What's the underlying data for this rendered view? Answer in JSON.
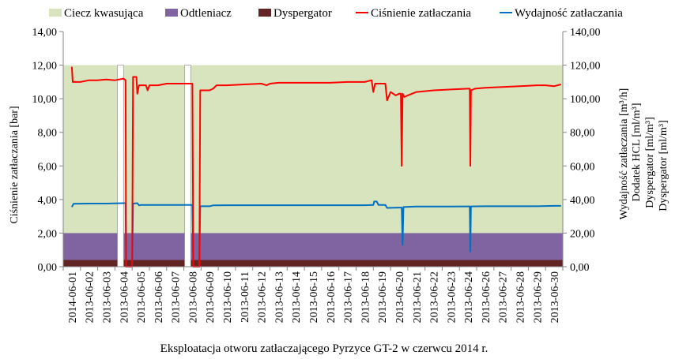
{
  "chart_data": {
    "type": "area+line",
    "title": "",
    "xlabel": "Eksploatacja otworu zatłaczającego Pyrzyce GT-2 w czerwcu 2014 r.",
    "ylabel_left": "Ciśnienie zatłaczania [bar]",
    "ylabel_right": [
      "Wydajność zatłaczania [m³/h]",
      "Dodatek HCL [ml/m³]",
      "Dyspergator [ml/m³]",
      "Dyspergator [ml/m³]"
    ],
    "ylim_left": [
      0,
      14
    ],
    "ylim_right": [
      0,
      140
    ],
    "left_ticks": [
      "0,00",
      "2,00",
      "4,00",
      "6,00",
      "8,00",
      "10,00",
      "12,00",
      "14,00"
    ],
    "right_ticks": [
      "0,00",
      "20,00",
      "40,00",
      "60,00",
      "80,00",
      "100,00",
      "120,00",
      "140,00"
    ],
    "categories": [
      "2014-06-01",
      "2013-06-02",
      "2013-06-03",
      "2013-06-04",
      "2013-06-05",
      "2013-06-06",
      "2013-06-07",
      "2013-06-08",
      "2013-06-09",
      "2013-06-10",
      "2013-06-11",
      "2013-06-12",
      "2013-06-13",
      "2013-06-14",
      "2013-06-15",
      "2013-06-16",
      "2013-06-17",
      "2013-06-18",
      "2013-06-19",
      "2013-06-20",
      "2013-06-21",
      "2013-06-22",
      "2013-06-23",
      "2013-06-24",
      "2013-06-26",
      "2013-06-27",
      "2013-06-28",
      "2013-06-29",
      "2013-06-30"
    ],
    "legend": [
      {
        "name": "Ciecz kwasująca",
        "kind": "area",
        "color": "#d7e4bd"
      },
      {
        "name": "Odtleniacz",
        "kind": "area",
        "color": "#8064a2"
      },
      {
        "name": "Dyspergator",
        "kind": "area",
        "color": "#632523"
      },
      {
        "name": "Ciśnienie zatłaczania",
        "kind": "line",
        "color": "#ff0000"
      },
      {
        "name": "Wydajność zatłaczania",
        "kind": "line",
        "color": "#0070c0"
      }
    ],
    "area_levels_left_axis": {
      "Ciecz kwasująca": 12.0,
      "Odtleniacz": 2.0,
      "Dyspergator": 0.4
    },
    "area_gaps_day": [
      [
        4.15,
        4.5
      ],
      [
        8.05,
        8.4
      ]
    ],
    "pressure_series": {
      "name": "Ciśnienie zatłaczania",
      "axis": "left",
      "points": [
        [
          1.0,
          11.9
        ],
        [
          1.05,
          11.0
        ],
        [
          1.5,
          11.0
        ],
        [
          2.0,
          11.1
        ],
        [
          2.5,
          11.1
        ],
        [
          3.0,
          11.15
        ],
        [
          3.5,
          11.1
        ],
        [
          4.0,
          11.2
        ],
        [
          4.12,
          11.1
        ],
        [
          4.15,
          0
        ],
        [
          4.5,
          0
        ],
        [
          4.55,
          11.3
        ],
        [
          4.75,
          11.3
        ],
        [
          4.8,
          10.3
        ],
        [
          4.9,
          10.8
        ],
        [
          5.3,
          10.8
        ],
        [
          5.4,
          10.5
        ],
        [
          5.5,
          10.8
        ],
        [
          6.0,
          10.8
        ],
        [
          6.5,
          10.9
        ],
        [
          7.0,
          10.9
        ],
        [
          7.5,
          10.9
        ],
        [
          8.0,
          10.9
        ],
        [
          8.05,
          0
        ],
        [
          8.4,
          0
        ],
        [
          8.45,
          10.5
        ],
        [
          9.0,
          10.5
        ],
        [
          9.2,
          10.6
        ],
        [
          9.4,
          10.8
        ],
        [
          10.0,
          10.8
        ],
        [
          11.0,
          10.85
        ],
        [
          12.0,
          10.9
        ],
        [
          12.3,
          10.8
        ],
        [
          12.5,
          10.9
        ],
        [
          13.0,
          10.95
        ],
        [
          14.0,
          10.95
        ],
        [
          15.0,
          10.95
        ],
        [
          16.0,
          10.95
        ],
        [
          17.0,
          11.0
        ],
        [
          18.0,
          11.0
        ],
        [
          18.4,
          11.1
        ],
        [
          18.5,
          10.4
        ],
        [
          18.6,
          10.9
        ],
        [
          19.2,
          10.9
        ],
        [
          19.3,
          9.9
        ],
        [
          19.5,
          10.4
        ],
        [
          19.8,
          10.2
        ],
        [
          20.0,
          10.3
        ],
        [
          20.1,
          10.3
        ],
        [
          20.15,
          6.0
        ],
        [
          20.2,
          10.3
        ],
        [
          20.3,
          10.1
        ],
        [
          20.5,
          10.2
        ],
        [
          21.0,
          10.4
        ],
        [
          22.0,
          10.5
        ],
        [
          23.0,
          10.55
        ],
        [
          24.0,
          10.6
        ],
        [
          24.1,
          10.6
        ],
        [
          24.13,
          6.0
        ],
        [
          24.17,
          10.5
        ],
        [
          24.4,
          10.6
        ],
        [
          25.0,
          10.65
        ],
        [
          26.0,
          10.7
        ],
        [
          27.0,
          10.75
        ],
        [
          28.0,
          10.8
        ],
        [
          28.5,
          10.8
        ],
        [
          29.0,
          10.75
        ],
        [
          29.4,
          10.85
        ]
      ]
    },
    "flow_series": {
      "name": "Wydajność zatłaczania",
      "axis": "right",
      "points": [
        [
          1.0,
          35.5
        ],
        [
          1.1,
          37.5
        ],
        [
          2.0,
          37.6
        ],
        [
          3.0,
          37.6
        ],
        [
          4.0,
          37.8
        ],
        [
          4.12,
          37.8
        ],
        [
          4.15,
          0
        ],
        [
          4.5,
          0
        ],
        [
          4.55,
          37.6
        ],
        [
          4.8,
          37.8
        ],
        [
          4.9,
          36.5
        ],
        [
          5.0,
          36.8
        ],
        [
          6.0,
          36.8
        ],
        [
          7.0,
          36.8
        ],
        [
          8.0,
          36.8
        ],
        [
          8.05,
          0
        ],
        [
          8.4,
          0
        ],
        [
          8.45,
          36.0
        ],
        [
          9.0,
          36.0
        ],
        [
          9.2,
          36.5
        ],
        [
          10.0,
          36.6
        ],
        [
          11.0,
          36.6
        ],
        [
          12.0,
          36.6
        ],
        [
          13.0,
          36.6
        ],
        [
          14.0,
          36.6
        ],
        [
          15.0,
          36.6
        ],
        [
          16.0,
          36.6
        ],
        [
          17.0,
          36.6
        ],
        [
          18.0,
          36.6
        ],
        [
          18.5,
          36.8
        ],
        [
          18.55,
          38.8
        ],
        [
          18.7,
          38.8
        ],
        [
          18.8,
          36.8
        ],
        [
          19.0,
          36.8
        ],
        [
          19.2,
          36.8
        ],
        [
          19.3,
          35.0
        ],
        [
          20.0,
          35.2
        ],
        [
          20.15,
          35.2
        ],
        [
          20.2,
          13.0
        ],
        [
          20.25,
          35.5
        ],
        [
          21.0,
          35.8
        ],
        [
          22.0,
          35.8
        ],
        [
          23.0,
          35.8
        ],
        [
          24.0,
          35.9
        ],
        [
          24.1,
          35.9
        ],
        [
          24.13,
          9.0
        ],
        [
          24.17,
          35.9
        ],
        [
          25.0,
          36.0
        ],
        [
          26.0,
          36.0
        ],
        [
          27.0,
          36.0
        ],
        [
          28.0,
          36.0
        ],
        [
          29.0,
          36.2
        ],
        [
          29.4,
          36.2
        ]
      ]
    }
  }
}
